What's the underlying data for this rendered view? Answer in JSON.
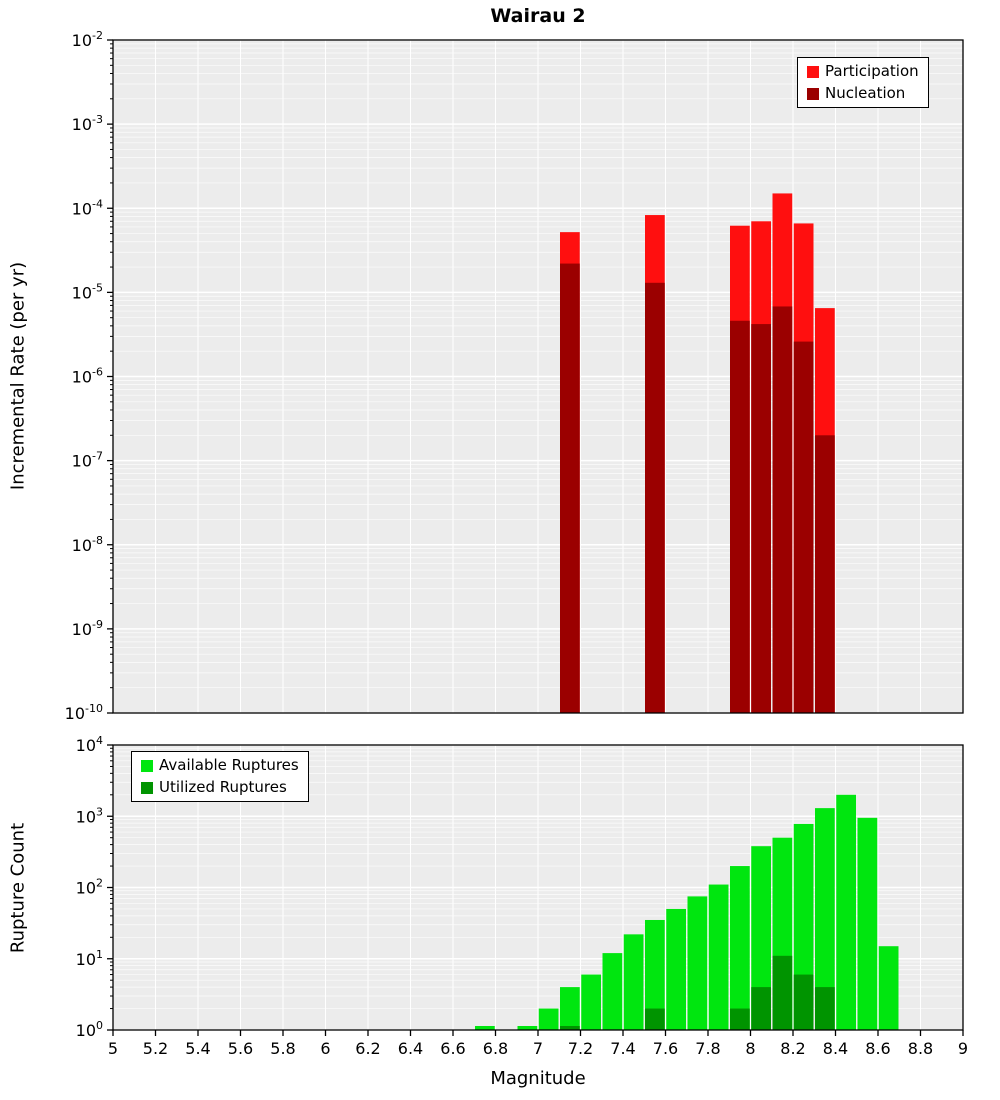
{
  "style": {
    "plot_bg": "#ececec",
    "grid_color": "#ffffff",
    "frame_color": "#000000"
  },
  "chart_data": [
    {
      "type": "bar",
      "title": "Wairau 2",
      "xlabel": "",
      "ylabel": "Incremental Rate (per yr)",
      "yscale": "log",
      "xlim": [
        5,
        9
      ],
      "ylim": [
        1e-10,
        0.01
      ],
      "yticks_exp": [
        -2,
        -3,
        -4,
        -5,
        -6,
        -7,
        -8,
        -9,
        -10
      ],
      "bar_width": 0.1,
      "grid": true,
      "legend_position": "top-right",
      "series": [
        {
          "name": "Participation",
          "color": "#ff0f0f",
          "x": [
            7.15,
            7.55,
            7.95,
            8.05,
            8.15,
            8.25,
            8.35
          ],
          "values": [
            5.2e-05,
            8.3e-05,
            6.2e-05,
            7e-05,
            0.00015,
            6.6e-05,
            6.5e-06
          ]
        },
        {
          "name": "Nucleation",
          "color": "#9b0000",
          "x": [
            7.15,
            7.55,
            7.95,
            8.05,
            8.15,
            8.25,
            8.35
          ],
          "values": [
            2.2e-05,
            1.3e-05,
            4.6e-06,
            4.2e-06,
            6.8e-06,
            2.6e-06,
            2e-07
          ]
        }
      ]
    },
    {
      "type": "bar",
      "title": "",
      "xlabel": "Magnitude",
      "ylabel": "Rupture Count",
      "yscale": "log",
      "xlim": [
        5,
        9
      ],
      "ylim": [
        1,
        10000.0
      ],
      "yticks_exp": [
        0,
        1,
        2,
        3,
        4
      ],
      "xtick_labels": [
        "5",
        "5.2",
        "5.4",
        "5.6",
        "5.8",
        "6",
        "6.2",
        "6.4",
        "6.6",
        "6.8",
        "7",
        "7.2",
        "7.4",
        "7.6",
        "7.8",
        "8",
        "8.2",
        "8.4",
        "8.6",
        "8.8",
        "9"
      ],
      "bar_width": 0.1,
      "grid": true,
      "legend_position": "top-left",
      "series": [
        {
          "name": "Available Ruptures",
          "color": "#00e60f",
          "x": [
            6.75,
            6.95,
            7.05,
            7.15,
            7.25,
            7.35,
            7.45,
            7.55,
            7.65,
            7.75,
            7.85,
            7.95,
            8.05,
            8.15,
            8.25,
            8.35,
            8.45,
            8.55,
            8.65
          ],
          "values": [
            1,
            1,
            2,
            4,
            6,
            12,
            22,
            35,
            50,
            75,
            110,
            200,
            380,
            500,
            780,
            1300,
            2000,
            950,
            15
          ]
        },
        {
          "name": "Utilized Ruptures",
          "color": "#009400",
          "x": [
            7.15,
            7.55,
            7.95,
            8.05,
            8.15,
            8.25,
            8.35
          ],
          "values": [
            1,
            2,
            2,
            4,
            11,
            6,
            4
          ]
        }
      ]
    }
  ]
}
